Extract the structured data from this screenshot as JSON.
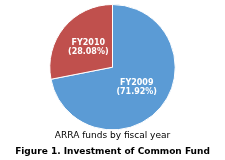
{
  "chart_data": {
    "type": "pie",
    "title": "Figure 1. Investment of Common Fund",
    "subtitle": "ARRA funds by fiscal year",
    "categories": [
      "FY2009",
      "FY2010"
    ],
    "values": [
      71.92,
      28.08
    ],
    "value_labels": [
      "(71.92%)",
      "(28.08%)"
    ],
    "data_labels": true,
    "colors": [
      "#5b9bd5",
      "#c0504d"
    ]
  }
}
